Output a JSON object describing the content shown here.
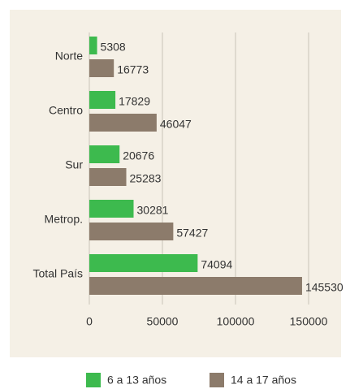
{
  "chart_data": {
    "type": "bar",
    "orientation": "horizontal",
    "categories": [
      "Norte",
      "Centro",
      "Sur",
      "Metrop.",
      "Total País"
    ],
    "series": [
      {
        "name": "6 a 13 años",
        "color": "#3dba4e",
        "values": [
          5308,
          17829,
          20676,
          30281,
          74094
        ]
      },
      {
        "name": "14 a 17 años",
        "color": "#8c7b6b",
        "values": [
          16773,
          46047,
          25283,
          57427,
          145530
        ]
      }
    ],
    "xlim": [
      0,
      150000
    ],
    "xticks": [
      0,
      50000,
      100000,
      150000
    ],
    "grid": true,
    "legend": "bottom"
  }
}
